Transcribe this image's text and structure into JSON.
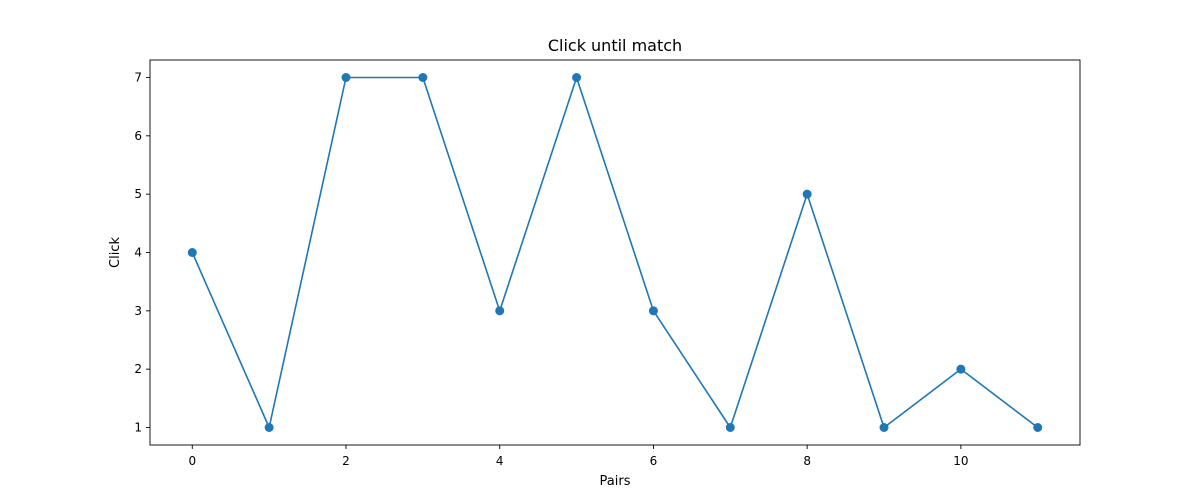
{
  "chart_data": {
    "type": "line",
    "title": "Click until match",
    "xlabel": "Pairs",
    "ylabel": "Click",
    "x": [
      0,
      1,
      2,
      3,
      4,
      5,
      6,
      7,
      8,
      9,
      10,
      11
    ],
    "series": [
      {
        "values": [
          4,
          1,
          7,
          7,
          3,
          7,
          3,
          1,
          5,
          1,
          2,
          1
        ],
        "color": "#1f77b4",
        "marker": "circle"
      }
    ],
    "xlim": [
      -0.55,
      11.55
    ],
    "ylim": [
      0.7,
      7.3
    ],
    "xticks": [
      0,
      2,
      4,
      6,
      8,
      10
    ],
    "xtick_labels": [
      "0",
      "2",
      "4",
      "6",
      "8",
      "10"
    ],
    "yticks": [
      1,
      2,
      3,
      4,
      5,
      6,
      7
    ],
    "ytick_labels": [
      "1",
      "2",
      "3",
      "4",
      "5",
      "6",
      "7"
    ],
    "grid": false,
    "legend": false
  }
}
